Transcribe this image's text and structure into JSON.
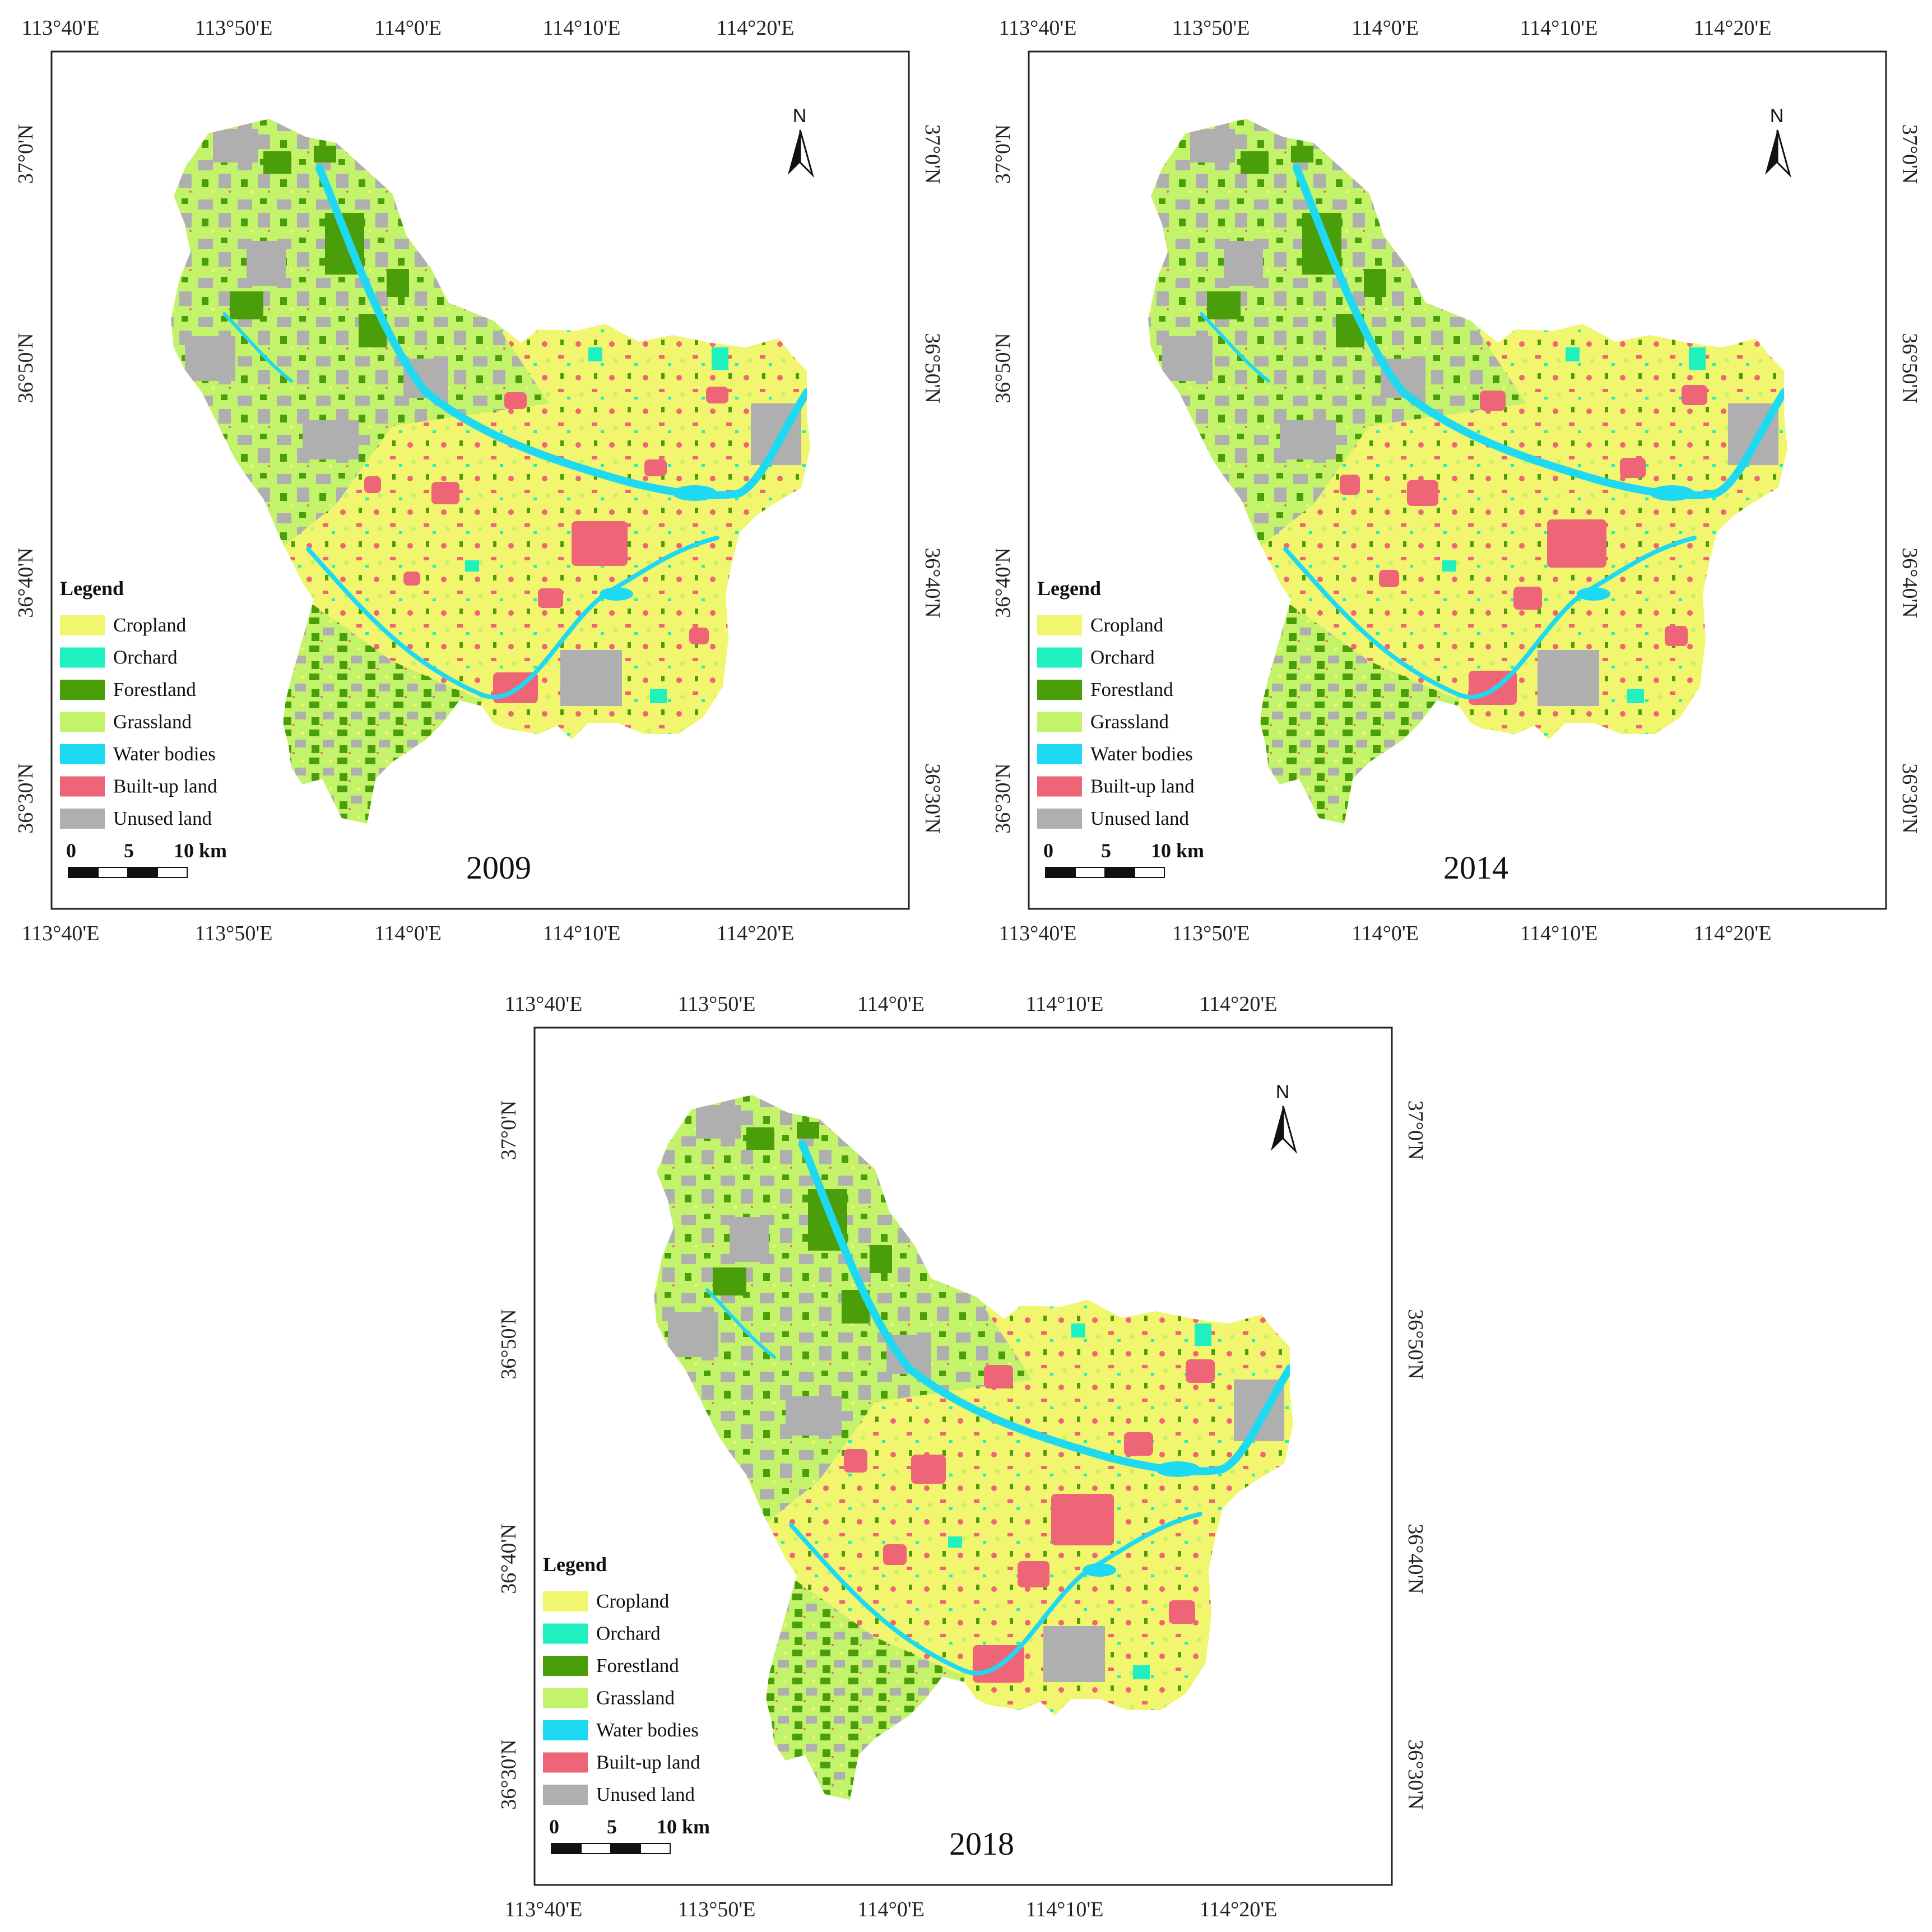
{
  "figure": {
    "lon_ticks": [
      "113°40'E",
      "113°50'E",
      "114°0'E",
      "114°10'E",
      "114°20'E"
    ],
    "lat_ticks": [
      "37°0'N",
      "36°50'N",
      "36°40'N",
      "36°30'N"
    ],
    "north_arrow": "N",
    "legend_title": "Legend",
    "legend": [
      {
        "label": "Cropland",
        "color": "#F2F56E"
      },
      {
        "label": "Orchard",
        "color": "#1FF0C0"
      },
      {
        "label": "Forestland",
        "color": "#4A9E0A"
      },
      {
        "label": "Grassland",
        "color": "#C3F36A"
      },
      {
        "label": "Water bodies",
        "color": "#1ED9F2"
      },
      {
        "label": "Built-up land",
        "color": "#EE6577"
      },
      {
        "label": "Unused land",
        "color": "#AFAFAF"
      }
    ],
    "scale_bar": {
      "labels": [
        "0",
        "5",
        "10 km"
      ]
    }
  },
  "maps": [
    {
      "year": "2009"
    },
    {
      "year": "2014"
    },
    {
      "year": "2018"
    }
  ],
  "icons": {
    "north": "north-arrow-icon"
  }
}
